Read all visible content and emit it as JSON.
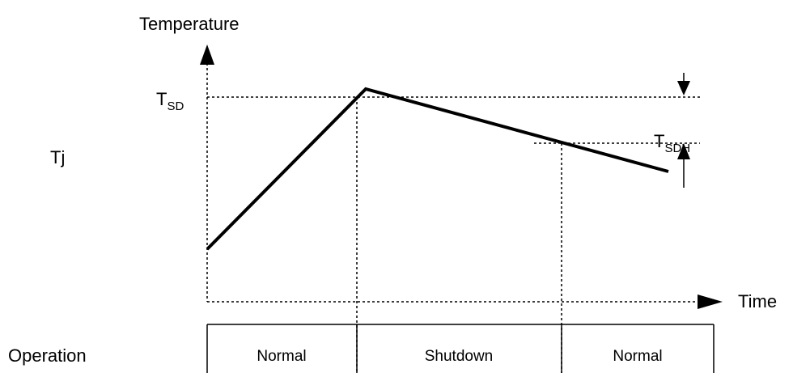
{
  "axes": {
    "y_label": "Temperature",
    "x_label": "Time"
  },
  "levels": {
    "shutdown": {
      "base": "T",
      "sub": "SD"
    },
    "hysteresis": {
      "base": "T",
      "sub": "SDH"
    }
  },
  "curve_label": "Tj",
  "operation": {
    "label": "Operation",
    "states": [
      "Normal",
      "Shutdown",
      "Normal"
    ]
  }
}
